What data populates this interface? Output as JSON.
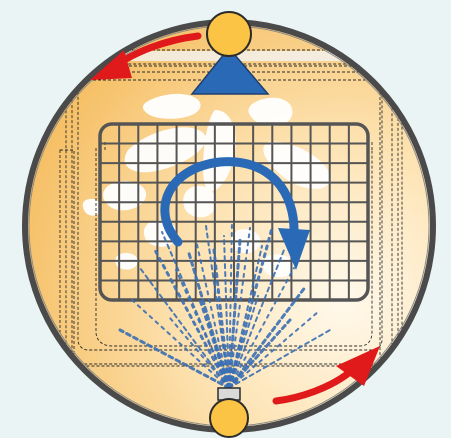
{
  "diagram": {
    "colors": {
      "background": "#eaf4f4",
      "drum_rim": "#555555",
      "drum_fill_dark": "#f6c56c",
      "drum_fill_light": "#fff7e8",
      "sensor_fill": "#fbc445",
      "sensor_stroke": "#2b2b2b",
      "nozzle_fill": "#2a69b6",
      "spray": "#3b6fb4",
      "rotation_arrow": "#2a69b6",
      "motion_arrow": "#e01a1a",
      "grid": "#555555",
      "foam": "#ffffff",
      "dashed_outline": "#2b2b2b"
    },
    "icons": {
      "top_sensor": "circle-sensor-icon",
      "bottom_sensor": "circle-sensor-icon",
      "nozzle": "triangle-nozzle-icon",
      "rotation": "circular-arrow-icon",
      "motion_top": "curved-arrow-left-icon",
      "motion_bottom": "curved-arrow-right-icon"
    },
    "grid": {
      "columns": 14,
      "rows": 9
    }
  }
}
